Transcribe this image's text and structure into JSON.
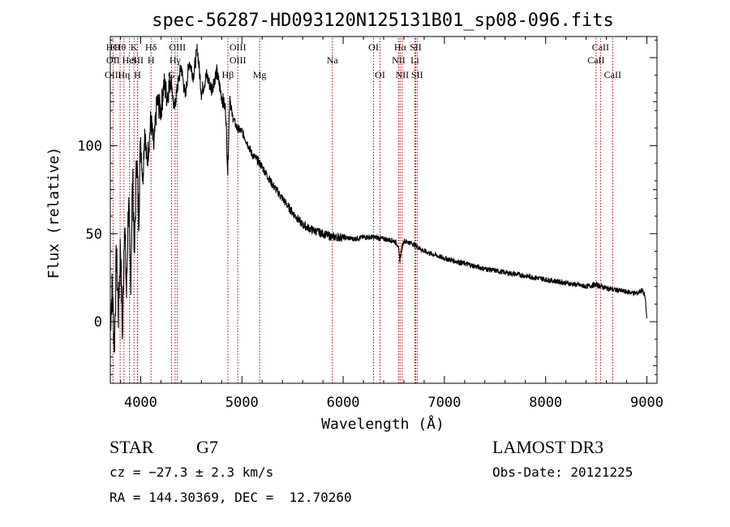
{
  "chart_data": {
    "type": "line",
    "title": "spec-56287-HD093120N125131B01_sp08-096.fits",
    "xlabel": "Wavelength (Å)",
    "ylabel": "Flux (relative)",
    "xlim": [
      3700,
      9100
    ],
    "ylim": [
      -35,
      162
    ],
    "xticks": [
      4000,
      5000,
      6000,
      7000,
      8000,
      9000
    ],
    "yticks": [
      0,
      50,
      100
    ],
    "series": [
      {
        "name": "flux",
        "x": [
          3700,
          3720,
          3740,
          3760,
          3780,
          3800,
          3820,
          3840,
          3860,
          3880,
          3900,
          3920,
          3940,
          3960,
          3980,
          4000,
          4020,
          4040,
          4060,
          4080,
          4100,
          4130,
          4160,
          4200,
          4230,
          4260,
          4300,
          4330,
          4360,
          4400,
          4440,
          4480,
          4520,
          4560,
          4600,
          4650,
          4700,
          4750,
          4800,
          4840,
          4860,
          4880,
          4900,
          4950,
          5000,
          5050,
          5100,
          5150,
          5200,
          5300,
          5400,
          5500,
          5600,
          5700,
          5800,
          5900,
          6000,
          6100,
          6200,
          6300,
          6400,
          6500,
          6540,
          6560,
          6580,
          6600,
          6650,
          6700,
          6800,
          6900,
          7000,
          7200,
          7400,
          7600,
          7800,
          8000,
          8200,
          8400,
          8500,
          8600,
          8700,
          8800,
          8900,
          8950,
          8980,
          9000
        ],
        "y": [
          0,
          20,
          -15,
          38,
          5,
          45,
          -10,
          60,
          15,
          70,
          20,
          80,
          40,
          95,
          60,
          105,
          80,
          110,
          90,
          100,
          115,
          98,
          125,
          120,
          135,
          128,
          140,
          120,
          132,
          145,
          128,
          148,
          140,
          155,
          130,
          140,
          132,
          142,
          128,
          120,
          85,
          130,
          118,
          110,
          108,
          102,
          95,
          92,
          88,
          78,
          70,
          62,
          55,
          52,
          50,
          48,
          48,
          47,
          48,
          48,
          47,
          46,
          44,
          35,
          42,
          46,
          45,
          44,
          40,
          38,
          36,
          33,
          30,
          28,
          26,
          24,
          22,
          20,
          21,
          19,
          18,
          17,
          16,
          18,
          15,
          2
        ]
      }
    ],
    "line_markers": [
      {
        "label": "HO",
        "wavelength": 3727,
        "row": 1
      },
      {
        "label": "OII",
        "wavelength": 3727,
        "row": 2
      },
      {
        "label": "OIII",
        "wavelength": 3727,
        "row": 3
      },
      {
        "label": "Hθ",
        "wavelength": 3797,
        "row": 1
      },
      {
        "label": "Hη",
        "wavelength": 3835,
        "row": 3
      },
      {
        "label": "HeI",
        "wavelength": 3889,
        "row": 2
      },
      {
        "label": "K",
        "wavelength": 3934,
        "row": 1
      },
      {
        "label": "SII",
        "wavelength": 3970,
        "row": 2
      },
      {
        "label": "H",
        "wavelength": 3968,
        "row": 3
      },
      {
        "label": "Hδ",
        "wavelength": 4102,
        "row": 1
      },
      {
        "label": "H",
        "wavelength": 4102,
        "row": 2
      },
      {
        "label": "OIII",
        "wavelength": 4363,
        "row": 1
      },
      {
        "label": "Hγ",
        "wavelength": 4340,
        "row": 2
      },
      {
        "label": "G",
        "wavelength": 4305,
        "row": 3
      },
      {
        "label": "Hβ",
        "wavelength": 4861,
        "row": 3
      },
      {
        "label": "OIII",
        "wavelength": 4959,
        "row": 1
      },
      {
        "label": "OIII",
        "wavelength": 4959,
        "row": 2
      },
      {
        "label": "Mg",
        "wavelength": 5175,
        "row": 3
      },
      {
        "label": "Na",
        "wavelength": 5893,
        "row": 2
      },
      {
        "label": "OI",
        "wavelength": 6300,
        "row": 1
      },
      {
        "label": "OI",
        "wavelength": 6364,
        "row": 3
      },
      {
        "label": "Hα",
        "wavelength": 6563,
        "row": 1
      },
      {
        "label": "NII",
        "wavelength": 6548,
        "row": 2
      },
      {
        "label": "NII",
        "wavelength": 6583,
        "row": 3
      },
      {
        "label": "SII",
        "wavelength": 6716,
        "row": 1
      },
      {
        "label": "Li",
        "wavelength": 6708,
        "row": 2
      },
      {
        "label": "SII",
        "wavelength": 6731,
        "row": 3
      },
      {
        "label": "CaII",
        "wavelength": 8542,
        "row": 1
      },
      {
        "label": "CaII",
        "wavelength": 8498,
        "row": 2
      },
      {
        "label": "CaII",
        "wavelength": 8662,
        "row": 3
      }
    ]
  },
  "info": {
    "object_class": "STAR",
    "subclass": "G7",
    "cz": "cz = −27.3 ± 2.3 km/s",
    "coords": "RA = 144.30369, DEC =  12.70260",
    "survey": "LAMOST DR3",
    "obs_date": "Obs-Date: 20121225"
  }
}
